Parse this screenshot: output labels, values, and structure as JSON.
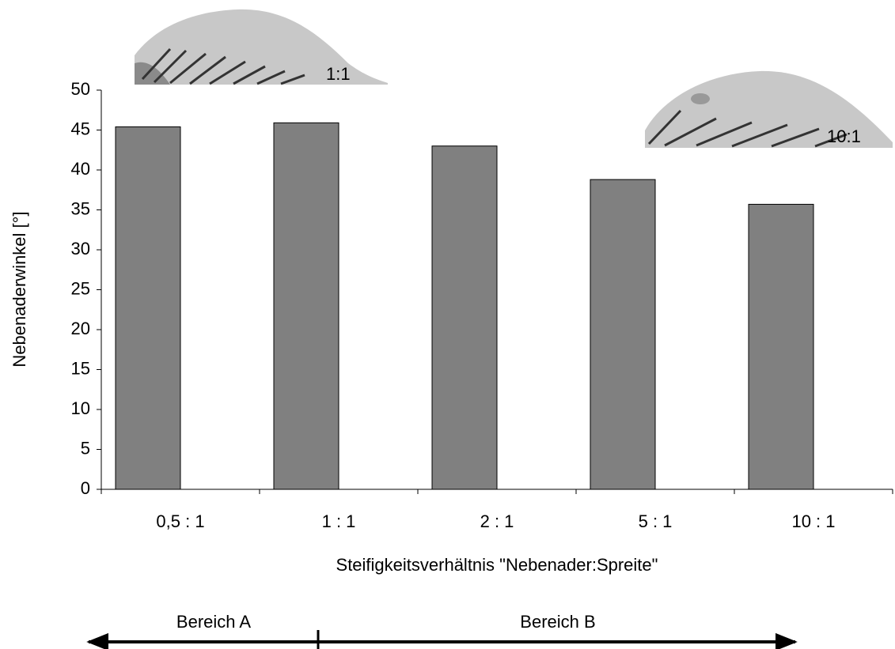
{
  "chart_data": {
    "type": "bar",
    "y_label": "Nebenaderwinkel [°]",
    "x_label": "Steifigkeitsverhältnis \"Nebenader:Spreite\"",
    "categories": [
      "0,5 : 1",
      "1 : 1",
      "2 : 1",
      "5 : 1",
      "10 : 1"
    ],
    "values": [
      45.4,
      45.9,
      43.0,
      38.8,
      35.7
    ],
    "color": "#808080",
    "ylim": [
      0,
      50
    ],
    "yticks": [
      0,
      5,
      10,
      15,
      20,
      25,
      30,
      35,
      40,
      45,
      50
    ],
    "grid": false,
    "annotations": [
      "1:1",
      "10:1"
    ],
    "regions": [
      "Bereich A",
      "Bereich B"
    ]
  }
}
